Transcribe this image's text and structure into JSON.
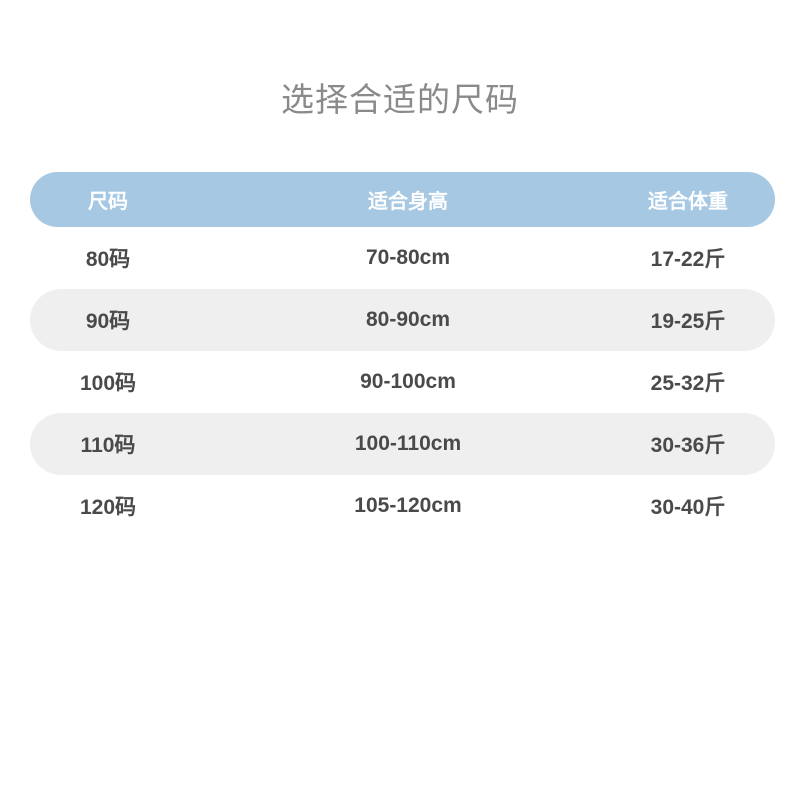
{
  "page": {
    "title": "选择合适的尺码"
  },
  "colors": {
    "header_bg": "#a6c8e2",
    "header_text": "#ffffff",
    "alt_row_bg": "#efefef",
    "row_text": "#4a4a4a",
    "title_text": "#8a8a8a"
  },
  "table": {
    "headers": {
      "size": "尺码",
      "height": "适合身高",
      "weight": "适合体重"
    },
    "rows": [
      {
        "size": "80码",
        "height": "70-80cm",
        "weight": "17-22斤"
      },
      {
        "size": "90码",
        "height": "80-90cm",
        "weight": "19-25斤"
      },
      {
        "size": "100码",
        "height": "90-100cm",
        "weight": "25-32斤"
      },
      {
        "size": "110码",
        "height": "100-110cm",
        "weight": "30-36斤"
      },
      {
        "size": "120码",
        "height": "105-120cm",
        "weight": "30-40斤"
      }
    ]
  }
}
